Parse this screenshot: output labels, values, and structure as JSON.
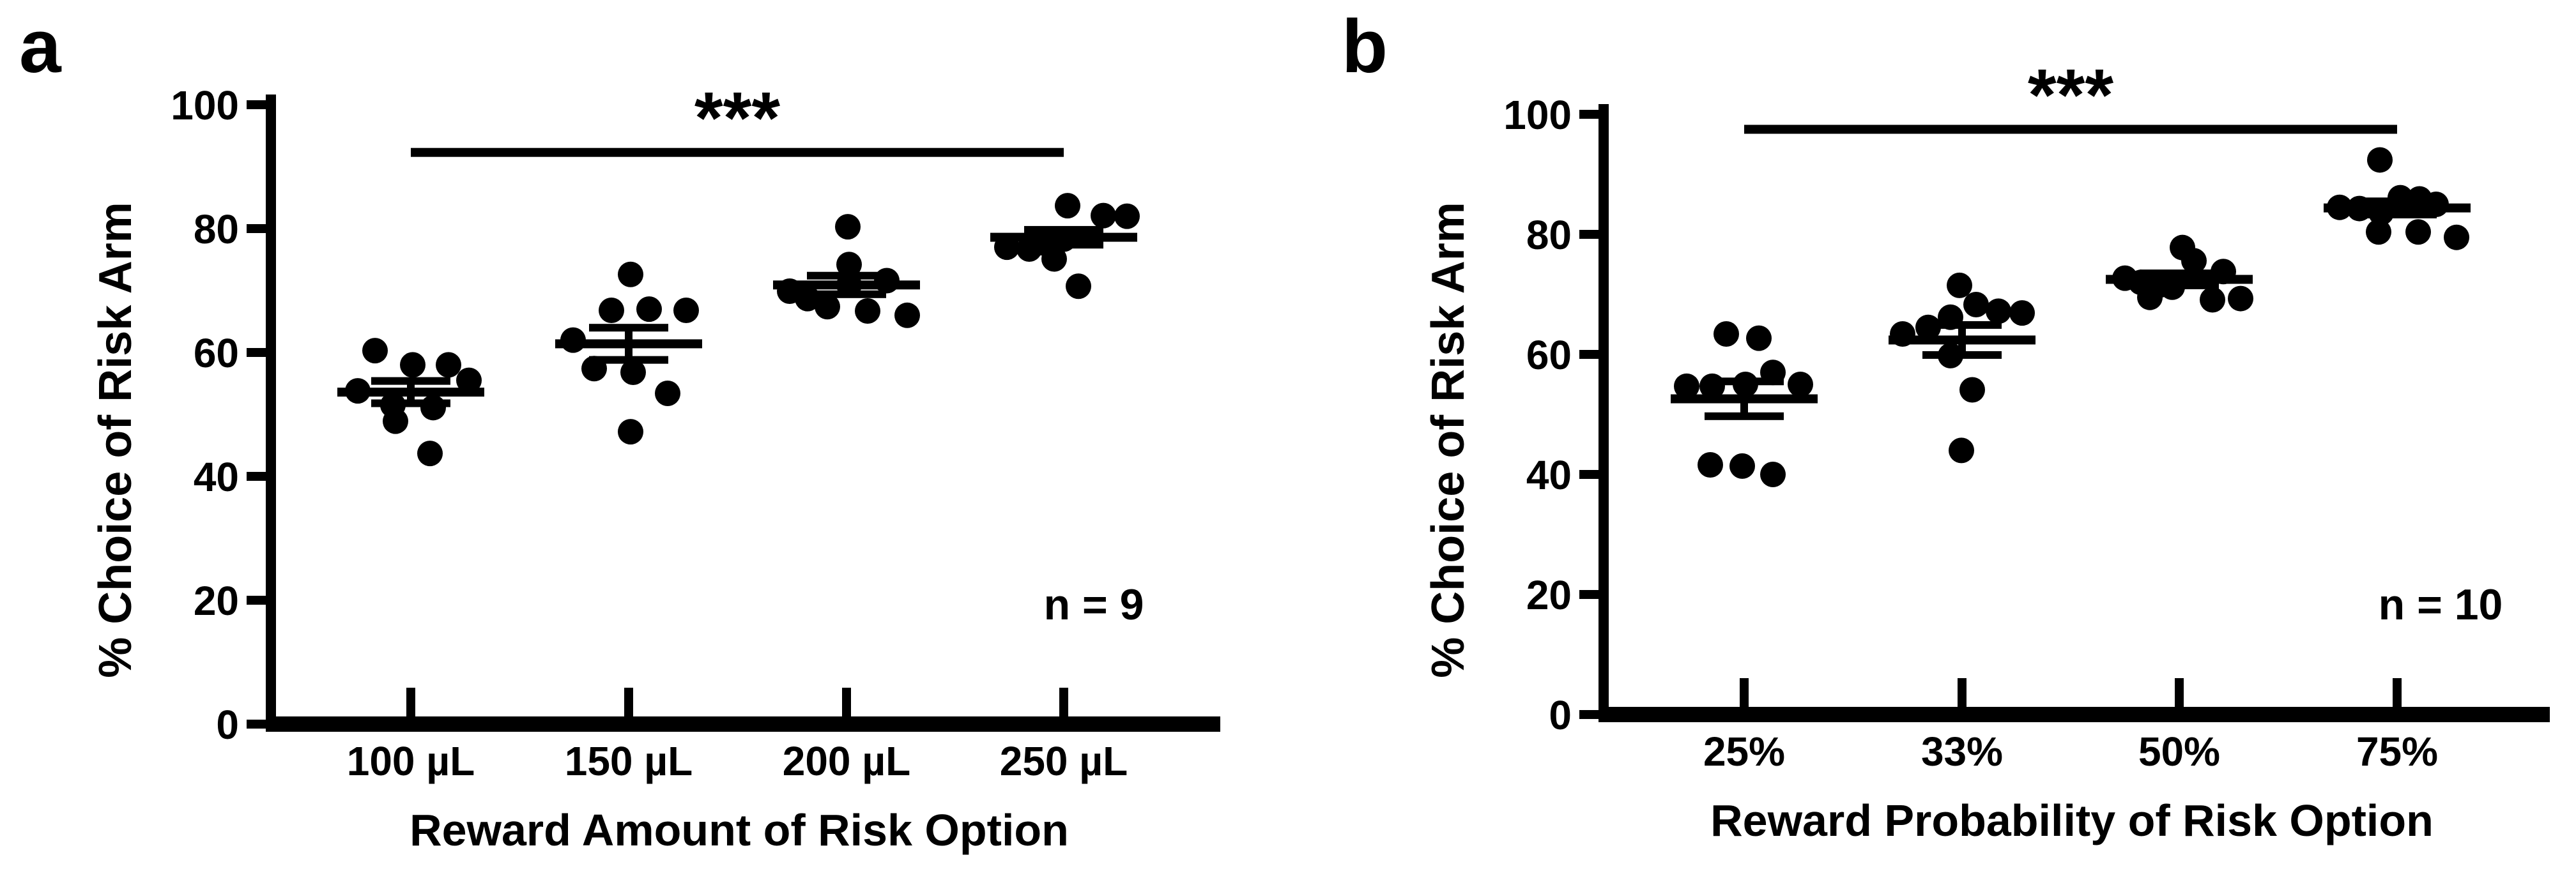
{
  "figure": {
    "background_color": "#ffffff",
    "ink_color": "#000000",
    "panels": [
      "a",
      "b"
    ]
  },
  "chart_data": [
    {
      "type": "scatter",
      "panel_label": "a",
      "ylabel": "% Choice of Risk Arm",
      "xlabel": "Reward Amount of Risk Option",
      "n_label": "n = 9",
      "ylim": [
        0,
        100
      ],
      "yticks": [
        0,
        20,
        40,
        60,
        80,
        100
      ],
      "grid": false,
      "categories": [
        "100 µL",
        "150 µL",
        "200 µL",
        "250 µL"
      ],
      "significance": {
        "label": "***",
        "from_index": 0,
        "to_index": 3,
        "line_value": 92.3
      },
      "groups": [
        {
          "category": "100 µL",
          "mean": 53.6,
          "sem": 1.8,
          "points": [
            [
              -56,
              60.3
            ],
            [
              3,
              58.0
            ],
            [
              59,
              58.0
            ],
            [
              91,
              55.5
            ],
            [
              -83,
              53.8
            ],
            [
              -28,
              51.5
            ],
            [
              35,
              51.1
            ],
            [
              -24,
              48.9
            ],
            [
              30,
              43.7
            ]
          ]
        },
        {
          "category": "150 µL",
          "mean": 61.4,
          "sem": 2.6,
          "points": [
            [
              3,
              72.6
            ],
            [
              -27,
              66.8
            ],
            [
              32,
              67.0
            ],
            [
              90,
              66.8
            ],
            [
              -87,
              62.0
            ],
            [
              -54,
              57.4
            ],
            [
              7,
              56.8
            ],
            [
              61,
              53.4
            ],
            [
              3,
              47.2
            ]
          ]
        },
        {
          "category": "200 µL",
          "mean": 70.9,
          "sem": 1.5,
          "points": [
            [
              2,
              80.3
            ],
            [
              4,
              74.2
            ],
            [
              63,
              71.6
            ],
            [
              4,
              70.9
            ],
            [
              -89,
              69.9
            ],
            [
              -61,
              68.7
            ],
            [
              -30,
              67.4
            ],
            [
              33,
              66.7
            ],
            [
              95,
              66.0
            ]
          ]
        },
        {
          "category": "250 µL",
          "mean": 78.6,
          "sem": 1.2,
          "points": [
            [
              6,
              83.7
            ],
            [
              62,
              82.1
            ],
            [
              99,
              82.0
            ],
            [
              0,
              78.3
            ],
            [
              -33,
              77.7
            ],
            [
              -89,
              77.0
            ],
            [
              -54,
              76.7
            ],
            [
              -15,
              75.1
            ],
            [
              23,
              70.7
            ]
          ]
        }
      ]
    },
    {
      "type": "scatter",
      "panel_label": "b",
      "ylabel": "% Choice of Risk Arm",
      "xlabel": "Reward Probability of Risk Option",
      "n_label": "n = 10",
      "ylim": [
        0,
        100
      ],
      "yticks": [
        0,
        20,
        40,
        60,
        80,
        100
      ],
      "grid": false,
      "categories": [
        "25%",
        "33%",
        "50%",
        "75%"
      ],
      "significance": {
        "label": "***",
        "from_index": 0,
        "to_index": 3,
        "line_value": 97.5
      },
      "groups": [
        {
          "category": "25%",
          "mean": 52.6,
          "sem": 2.9,
          "points": [
            [
              -28,
              63.4
            ],
            [
              23,
              62.7
            ],
            [
              45,
              57.0
            ],
            [
              -90,
              54.7
            ],
            [
              -50,
              54.7
            ],
            [
              2,
              55.0
            ],
            [
              88,
              55.0
            ],
            [
              -53,
              41.6
            ],
            [
              -3,
              41.4
            ],
            [
              45,
              40.0
            ]
          ]
        },
        {
          "category": "33%",
          "mean": 62.4,
          "sem": 2.5,
          "points": [
            [
              -4,
              71.5
            ],
            [
              22,
              68.3
            ],
            [
              57,
              67.2
            ],
            [
              94,
              66.9
            ],
            [
              -18,
              66.2
            ],
            [
              -53,
              64.5
            ],
            [
              -93,
              63.4
            ],
            [
              -18,
              59.8
            ],
            [
              16,
              54.1
            ],
            [
              -1,
              44.0
            ]
          ]
        },
        {
          "category": "50%",
          "mean": 72.5,
          "sem": 1.0,
          "points": [
            [
              5,
              77.8
            ],
            [
              23,
              75.6
            ],
            [
              69,
              73.8
            ],
            [
              -85,
              72.7
            ],
            [
              -60,
              72.0
            ],
            [
              -29,
              71.6
            ],
            [
              -11,
              71.2
            ],
            [
              -46,
              69.5
            ],
            [
              52,
              69.1
            ],
            [
              96,
              69.3
            ]
          ]
        },
        {
          "category": "75%",
          "mean": 84.4,
          "sem": 1.1,
          "points": [
            [
              -27,
              92.4
            ],
            [
              5,
              86.1
            ],
            [
              35,
              85.9
            ],
            [
              61,
              85.0
            ],
            [
              -90,
              84.5
            ],
            [
              -59,
              84.3
            ],
            [
              -25,
              83.6
            ],
            [
              -29,
              80.4
            ],
            [
              33,
              80.4
            ],
            [
              93,
              79.5
            ]
          ]
        }
      ]
    }
  ]
}
